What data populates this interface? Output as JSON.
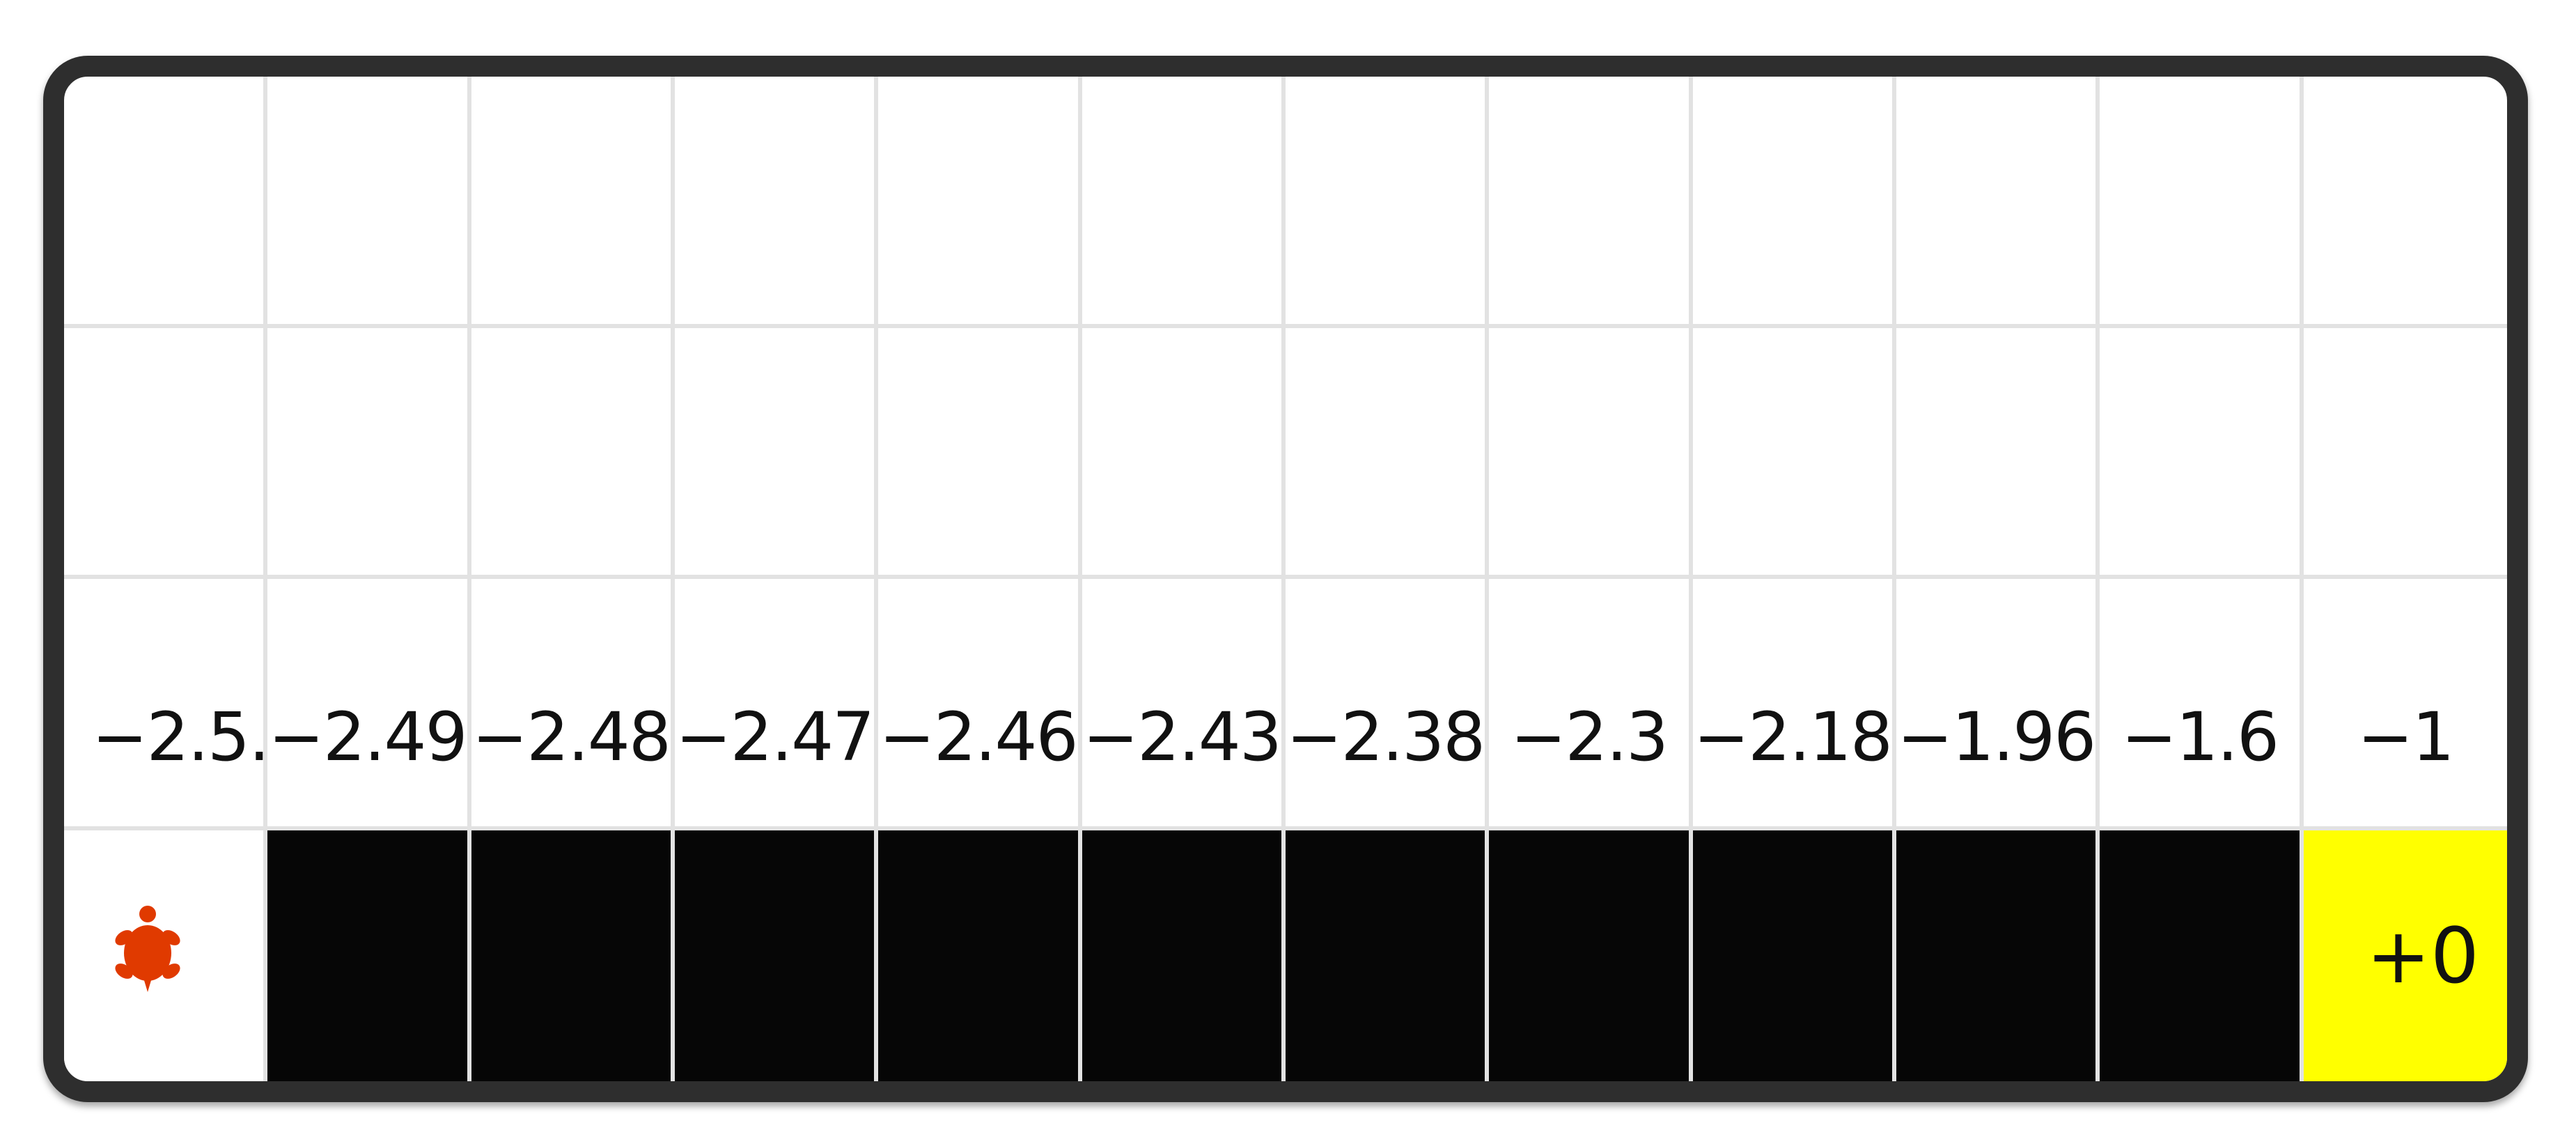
{
  "game": {
    "state_values": [
      "−2.5.",
      "−2.49",
      "−2.48",
      "−2.47",
      "−2.46",
      "−2.43",
      "−2.38",
      "−2.3",
      "−2.18",
      "−1.96",
      "−1.6",
      "−1"
    ],
    "goal_reward": "+0",
    "agent_icon": "turtle-icon",
    "colors": {
      "border": "#2e2e2e",
      "cliff": "#060606",
      "goal": "#ffff00",
      "agent": "#e03a00",
      "grid_line": "#e2e2e2"
    }
  }
}
